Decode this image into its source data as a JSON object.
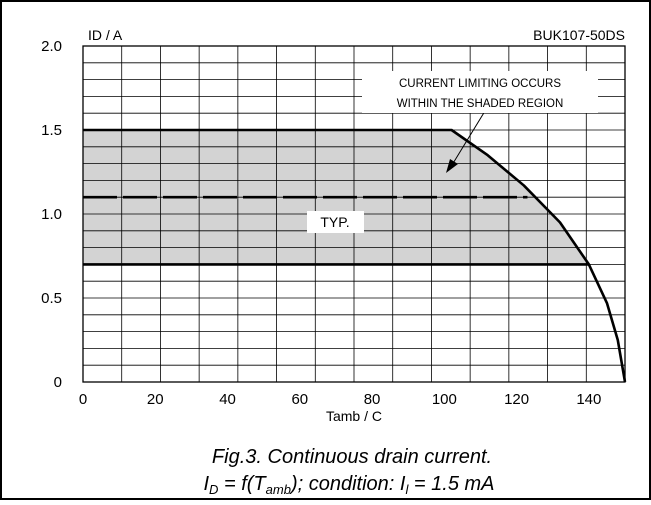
{
  "chart_data": {
    "type": "line",
    "part_number": "BUK107-50DS",
    "ylabel": "ID / A",
    "xlabel": "Tamb / C",
    "xlim": [
      0,
      150
    ],
    "ylim": [
      0,
      2.0
    ],
    "x_ticks": [
      "0",
      "20",
      "40",
      "60",
      "80",
      "100",
      "120",
      "140"
    ],
    "y_ticks": [
      "0",
      "0.5",
      "1.0",
      "1.5",
      "2.0"
    ],
    "grid": true,
    "annotation": [
      "CURRENT LIMITING OCCURS",
      "WITHIN THE SHADED REGION"
    ],
    "typ_label": "TYP.",
    "shaded_region": {
      "upper": 1.5,
      "lower": 0.7
    },
    "series": [
      {
        "values_x": [
          0,
          102,
          112,
          122,
          132,
          140,
          145,
          148,
          150
        ],
        "values_y": [
          1.5,
          1.5,
          1.35,
          1.17,
          0.95,
          0.7,
          0.47,
          0.25,
          0.0
        ]
      },
      {
        "values_x": [
          0,
          123
        ],
        "values_y": [
          1.1,
          1.1
        ],
        "style": "dashed"
      },
      {
        "values_x": [
          0,
          140
        ],
        "values_y": [
          0.7,
          0.7
        ]
      }
    ],
    "caption": {
      "line1": "Fig.3.   Continuous drain current.",
      "line2_parts": [
        {
          "t": "I",
          "sub": "D"
        },
        {
          "t": " = f(T",
          "sub": "amb"
        },
        {
          "t": "); condition: I",
          "sub": "l"
        },
        {
          "t": " = 1.5 mA"
        }
      ]
    }
  }
}
